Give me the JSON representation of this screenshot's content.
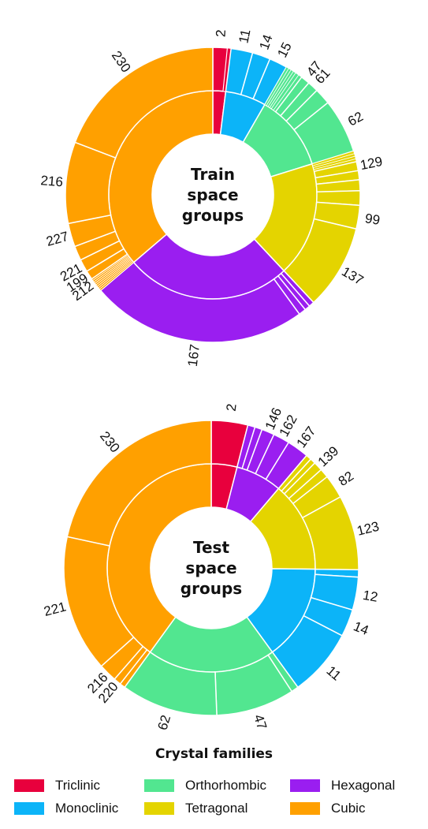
{
  "families": {
    "Triclinic": {
      "color": "#e8003d"
    },
    "Monoclinic": {
      "color": "#0cb4f8"
    },
    "Orthorhombic": {
      "color": "#52e690"
    },
    "Tetragonal": {
      "color": "#e4d400"
    },
    "Hexagonal": {
      "color": "#9a1ef0"
    },
    "Cubic": {
      "color": "#ffa000"
    }
  },
  "legend": {
    "title": "Crystal families",
    "items": [
      {
        "label": "Triclinic",
        "family": "Triclinic"
      },
      {
        "label": "Orthorhombic",
        "family": "Orthorhombic"
      },
      {
        "label": "Hexagonal",
        "family": "Hexagonal"
      },
      {
        "label": "Monoclinic",
        "family": "Monoclinic"
      },
      {
        "label": "Tetragonal",
        "family": "Tetragonal"
      },
      {
        "label": "Cubic",
        "family": "Cubic"
      }
    ]
  },
  "chart_data": [
    {
      "type": "sunburst",
      "title": "Train space groups",
      "title_lines": [
        "Train",
        "space",
        "groups"
      ],
      "inner_ring": [
        {
          "family": "Triclinic",
          "value": 1.0
        },
        {
          "family": "Monoclinic",
          "value": 3.2
        },
        {
          "family": "Orthorhombic",
          "value": 6.0
        },
        {
          "family": "Tetragonal",
          "value": 9.0
        },
        {
          "family": "Hexagonal",
          "value": 13.0
        },
        {
          "family": "Cubic",
          "value": 18.3
        }
      ],
      "outer_ring": [
        {
          "label": "2",
          "family": "Triclinic",
          "value": 0.8
        },
        {
          "label": "",
          "family": "Triclinic",
          "value": 0.2
        },
        {
          "label": "11",
          "family": "Monoclinic",
          "value": 1.2
        },
        {
          "label": "14",
          "family": "Monoclinic",
          "value": 1.0
        },
        {
          "label": "15",
          "family": "Monoclinic",
          "value": 1.0
        },
        {
          "label": "",
          "family": "Orthorhombic",
          "value": 0.15
        },
        {
          "label": "",
          "family": "Orthorhombic",
          "value": 0.15
        },
        {
          "label": "",
          "family": "Orthorhombic",
          "value": 0.15
        },
        {
          "label": "",
          "family": "Orthorhombic",
          "value": 0.15
        },
        {
          "label": "",
          "family": "Orthorhombic",
          "value": 0.2
        },
        {
          "label": "",
          "family": "Orthorhombic",
          "value": 0.2
        },
        {
          "label": "47",
          "family": "Orthorhombic",
          "value": 0.5
        },
        {
          "label": "61",
          "family": "Orthorhombic",
          "value": 0.6
        },
        {
          "label": "",
          "family": "Orthorhombic",
          "value": 0.9
        },
        {
          "label": "62",
          "family": "Orthorhombic",
          "value": 3.0
        },
        {
          "label": "",
          "family": "Tetragonal",
          "value": 0.15
        },
        {
          "label": "",
          "family": "Tetragonal",
          "value": 0.15
        },
        {
          "label": "",
          "family": "Tetragonal",
          "value": 0.15
        },
        {
          "label": "",
          "family": "Tetragonal",
          "value": 0.15
        },
        {
          "label": "129",
          "family": "Tetragonal",
          "value": 0.5
        },
        {
          "label": "",
          "family": "Tetragonal",
          "value": 0.5
        },
        {
          "label": "",
          "family": "Tetragonal",
          "value": 0.6
        },
        {
          "label": "",
          "family": "Tetragonal",
          "value": 0.8
        },
        {
          "label": "99",
          "family": "Tetragonal",
          "value": 1.3
        },
        {
          "label": "137",
          "family": "Tetragonal",
          "value": 4.7
        },
        {
          "label": "",
          "family": "Hexagonal",
          "value": 0.3
        },
        {
          "label": "",
          "family": "Hexagonal",
          "value": 0.3
        },
        {
          "label": "",
          "family": "Hexagonal",
          "value": 0.4
        },
        {
          "label": "167",
          "family": "Hexagonal",
          "value": 12.0
        },
        {
          "label": "",
          "family": "Cubic",
          "value": 0.1
        },
        {
          "label": "",
          "family": "Cubic",
          "value": 0.1
        },
        {
          "label": "",
          "family": "Cubic",
          "value": 0.1
        },
        {
          "label": "",
          "family": "Cubic",
          "value": 0.1
        },
        {
          "label": "",
          "family": "Cubic",
          "value": 0.1
        },
        {
          "label": "212",
          "family": "Cubic",
          "value": 0.1
        },
        {
          "label": "",
          "family": "Cubic",
          "value": 0.1
        },
        {
          "label": "",
          "family": "Cubic",
          "value": 0.1
        },
        {
          "label": "199",
          "family": "Cubic",
          "value": 0.5
        },
        {
          "label": "221",
          "family": "Cubic",
          "value": 0.7
        },
        {
          "label": "",
          "family": "Cubic",
          "value": 0.8
        },
        {
          "label": "227",
          "family": "Cubic",
          "value": 1.3
        },
        {
          "label": "216",
          "family": "Cubic",
          "value": 4.5
        },
        {
          "label": "230",
          "family": "Cubic",
          "value": 9.7
        }
      ]
    },
    {
      "type": "sunburst",
      "title": "Test space groups",
      "title_lines": [
        "Test",
        "space",
        "groups"
      ],
      "inner_ring": [
        {
          "family": "Triclinic",
          "value": 2.0
        },
        {
          "family": "Hexagonal",
          "value": 3.6
        },
        {
          "family": "Tetragonal",
          "value": 7.0
        },
        {
          "family": "Monoclinic",
          "value": 7.4
        },
        {
          "family": "Orthorhombic",
          "value": 10.0
        },
        {
          "family": "Cubic",
          "value": 20.0
        }
      ],
      "outer_ring": [
        {
          "label": "2",
          "family": "Triclinic",
          "value": 2.0
        },
        {
          "label": "",
          "family": "Hexagonal",
          "value": 0.4
        },
        {
          "label": "",
          "family": "Hexagonal",
          "value": 0.4
        },
        {
          "label": "146",
          "family": "Hexagonal",
          "value": 0.7
        },
        {
          "label": "162",
          "family": "Hexagonal",
          "value": 0.9
        },
        {
          "label": "167",
          "family": "Hexagonal",
          "value": 1.2
        },
        {
          "label": "",
          "family": "Tetragonal",
          "value": 0.3
        },
        {
          "label": "",
          "family": "Tetragonal",
          "value": 0.3
        },
        {
          "label": "139",
          "family": "Tetragonal",
          "value": 0.5
        },
        {
          "label": "",
          "family": "Tetragonal",
          "value": 0.5
        },
        {
          "label": "82",
          "family": "Tetragonal",
          "value": 1.3
        },
        {
          "label": "123",
          "family": "Tetragonal",
          "value": 4.1
        },
        {
          "label": "",
          "family": "Monoclinic",
          "value": 0.4
        },
        {
          "label": "12",
          "family": "Monoclinic",
          "value": 1.8
        },
        {
          "label": "14",
          "family": "Monoclinic",
          "value": 1.5
        },
        {
          "label": "11",
          "family": "Monoclinic",
          "value": 3.7
        },
        {
          "label": "",
          "family": "Orthorhombic",
          "value": 0.4
        },
        {
          "label": "47",
          "family": "Orthorhombic",
          "value": 4.3
        },
        {
          "label": "62",
          "family": "Orthorhombic",
          "value": 5.3
        },
        {
          "label": "",
          "family": "Cubic",
          "value": 0.3
        },
        {
          "label": "220",
          "family": "Cubic",
          "value": 0.4
        },
        {
          "label": "216",
          "family": "Cubic",
          "value": 1.0
        },
        {
          "label": "221",
          "family": "Cubic",
          "value": 7.5
        },
        {
          "label": "230",
          "family": "Cubic",
          "value": 10.8
        }
      ]
    }
  ]
}
